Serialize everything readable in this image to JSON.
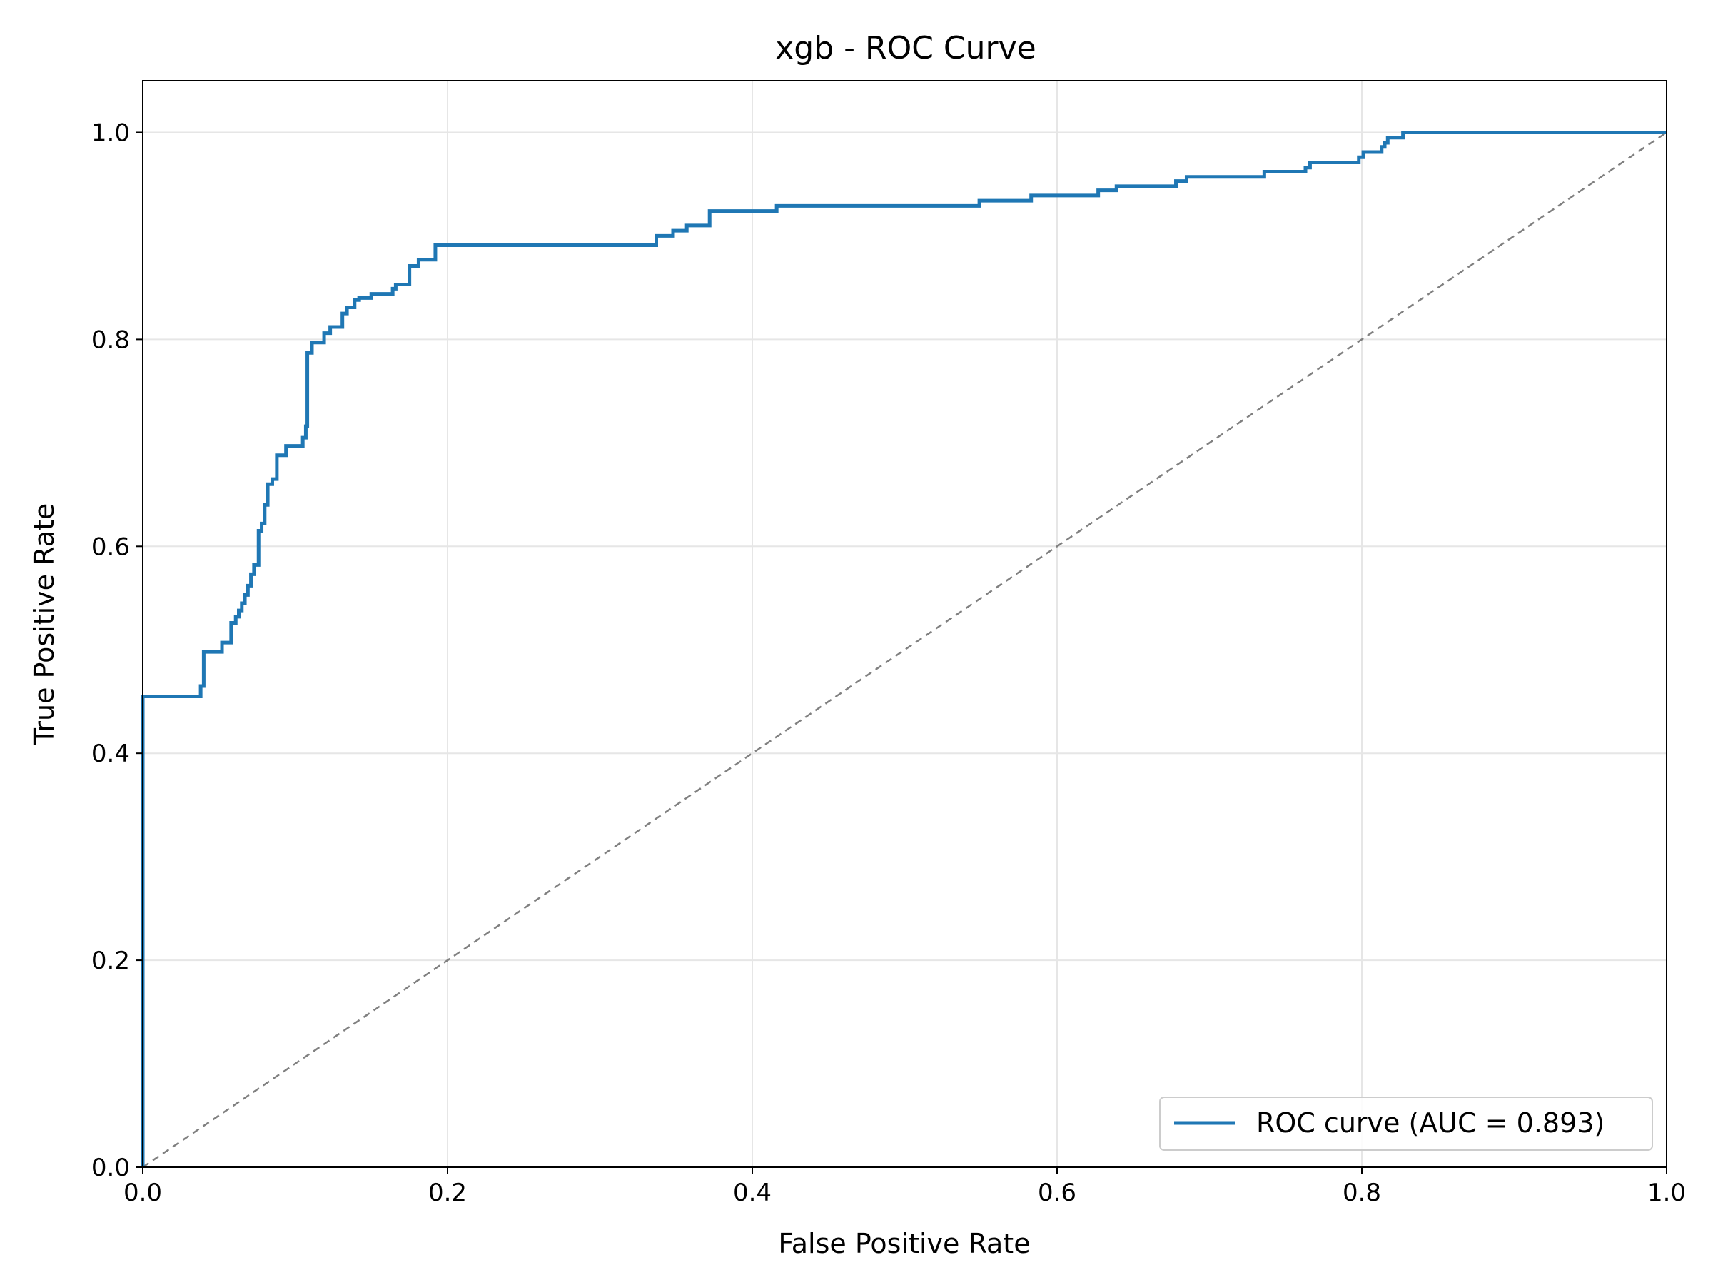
{
  "chart_data": {
    "type": "line",
    "title": "xgb - ROC Curve",
    "xlabel": "False Positive Rate",
    "ylabel": "True Positive Rate",
    "xlim": [
      0.0,
      1.0
    ],
    "ylim": [
      0.0,
      1.05
    ],
    "xticks": [
      0.0,
      0.2,
      0.4,
      0.6,
      0.8,
      1.0
    ],
    "xtick_labels": [
      "0.0",
      "0.2",
      "0.4",
      "0.6",
      "0.8",
      "1.0"
    ],
    "yticks": [
      0.0,
      0.2,
      0.4,
      0.6,
      0.8,
      1.0
    ],
    "ytick_labels": [
      "0.0",
      "0.2",
      "0.4",
      "0.6",
      "0.8",
      "1.0"
    ],
    "grid": true,
    "legend": {
      "position": "lower-right",
      "entries": [
        "ROC curve (AUC = 0.893)"
      ]
    },
    "series": [
      {
        "name": "ROC curve (AUC = 0.893)",
        "color": "#1f77b4",
        "style": "solid",
        "points": [
          [
            0.0,
            0.0
          ],
          [
            0.0,
            0.455
          ],
          [
            0.038,
            0.455
          ],
          [
            0.038,
            0.465
          ],
          [
            0.04,
            0.465
          ],
          [
            0.04,
            0.498
          ],
          [
            0.052,
            0.498
          ],
          [
            0.052,
            0.507
          ],
          [
            0.058,
            0.507
          ],
          [
            0.058,
            0.526
          ],
          [
            0.061,
            0.526
          ],
          [
            0.061,
            0.532
          ],
          [
            0.063,
            0.532
          ],
          [
            0.063,
            0.538
          ],
          [
            0.065,
            0.538
          ],
          [
            0.065,
            0.545
          ],
          [
            0.067,
            0.545
          ],
          [
            0.067,
            0.553
          ],
          [
            0.069,
            0.553
          ],
          [
            0.069,
            0.562
          ],
          [
            0.071,
            0.562
          ],
          [
            0.071,
            0.573
          ],
          [
            0.073,
            0.573
          ],
          [
            0.073,
            0.582
          ],
          [
            0.076,
            0.582
          ],
          [
            0.076,
            0.615
          ],
          [
            0.078,
            0.615
          ],
          [
            0.078,
            0.622
          ],
          [
            0.08,
            0.622
          ],
          [
            0.08,
            0.64
          ],
          [
            0.082,
            0.64
          ],
          [
            0.082,
            0.66
          ],
          [
            0.085,
            0.66
          ],
          [
            0.085,
            0.665
          ],
          [
            0.088,
            0.665
          ],
          [
            0.088,
            0.688
          ],
          [
            0.094,
            0.688
          ],
          [
            0.094,
            0.697
          ],
          [
            0.105,
            0.697
          ],
          [
            0.105,
            0.705
          ],
          [
            0.107,
            0.705
          ],
          [
            0.107,
            0.716
          ],
          [
            0.108,
            0.716
          ],
          [
            0.108,
            0.787
          ],
          [
            0.111,
            0.787
          ],
          [
            0.111,
            0.797
          ],
          [
            0.119,
            0.797
          ],
          [
            0.119,
            0.806
          ],
          [
            0.123,
            0.806
          ],
          [
            0.123,
            0.812
          ],
          [
            0.131,
            0.812
          ],
          [
            0.131,
            0.825
          ],
          [
            0.134,
            0.825
          ],
          [
            0.134,
            0.831
          ],
          [
            0.139,
            0.831
          ],
          [
            0.139,
            0.838
          ],
          [
            0.142,
            0.838
          ],
          [
            0.142,
            0.84
          ],
          [
            0.15,
            0.84
          ],
          [
            0.15,
            0.844
          ],
          [
            0.164,
            0.844
          ],
          [
            0.164,
            0.849
          ],
          [
            0.166,
            0.849
          ],
          [
            0.166,
            0.853
          ],
          [
            0.175,
            0.853
          ],
          [
            0.175,
            0.871
          ],
          [
            0.181,
            0.871
          ],
          [
            0.181,
            0.877
          ],
          [
            0.192,
            0.877
          ],
          [
            0.192,
            0.891
          ],
          [
            0.337,
            0.891
          ],
          [
            0.337,
            0.9
          ],
          [
            0.348,
            0.9
          ],
          [
            0.348,
            0.905
          ],
          [
            0.357,
            0.905
          ],
          [
            0.357,
            0.91
          ],
          [
            0.372,
            0.91
          ],
          [
            0.372,
            0.924
          ],
          [
            0.416,
            0.924
          ],
          [
            0.416,
            0.929
          ],
          [
            0.549,
            0.929
          ],
          [
            0.549,
            0.934
          ],
          [
            0.583,
            0.934
          ],
          [
            0.583,
            0.939
          ],
          [
            0.627,
            0.939
          ],
          [
            0.627,
            0.944
          ],
          [
            0.639,
            0.944
          ],
          [
            0.639,
            0.948
          ],
          [
            0.678,
            0.948
          ],
          [
            0.678,
            0.953
          ],
          [
            0.685,
            0.953
          ],
          [
            0.685,
            0.957
          ],
          [
            0.736,
            0.957
          ],
          [
            0.736,
            0.962
          ],
          [
            0.763,
            0.962
          ],
          [
            0.763,
            0.966
          ],
          [
            0.766,
            0.966
          ],
          [
            0.766,
            0.971
          ],
          [
            0.798,
            0.971
          ],
          [
            0.798,
            0.976
          ],
          [
            0.801,
            0.976
          ],
          [
            0.801,
            0.981
          ],
          [
            0.813,
            0.981
          ],
          [
            0.813,
            0.986
          ],
          [
            0.815,
            0.986
          ],
          [
            0.815,
            0.99
          ],
          [
            0.817,
            0.99
          ],
          [
            0.817,
            0.995
          ],
          [
            0.827,
            0.995
          ],
          [
            0.827,
            1.0
          ],
          [
            1.0,
            1.0
          ]
        ]
      },
      {
        "name": "",
        "color": "#808080",
        "style": "dashed",
        "points": [
          [
            0.0,
            0.0
          ],
          [
            1.0,
            1.0
          ]
        ]
      }
    ]
  }
}
